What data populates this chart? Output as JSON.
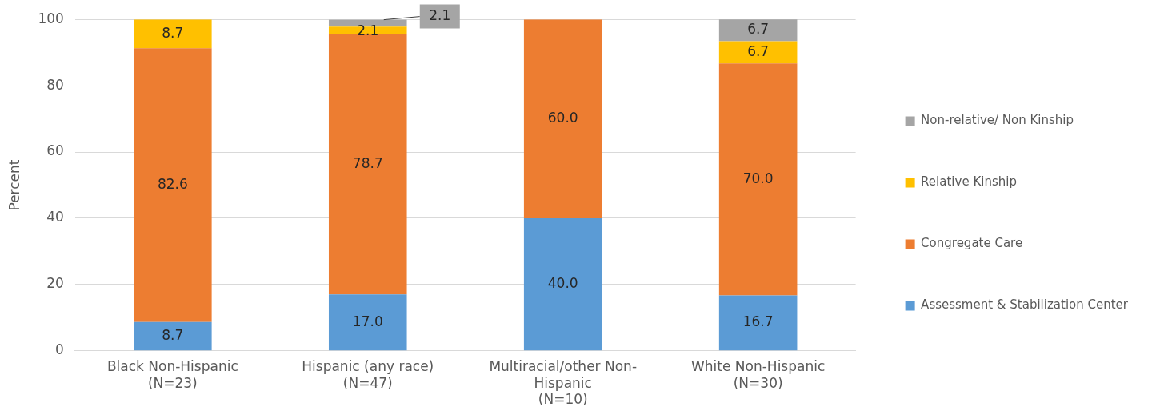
{
  "chart_data": {
    "type": "bar",
    "stacked": true,
    "ylabel": "Percent",
    "categories": [
      "Black Non-Hispanic\n(N=23)",
      "Hispanic (any race)\n(N=47)",
      "Multiracial/other Non-\nHispanic\n(N=10)",
      "White Non-Hispanic\n(N=30)"
    ],
    "series": [
      {
        "name": "Assessment & Stabilization Center",
        "color": "#5b9bd5",
        "values": [
          8.7,
          17.0,
          40.0,
          16.7
        ],
        "value_labels": [
          "8.7",
          "17.0",
          "40.0",
          "16.7"
        ]
      },
      {
        "name": "Congregate Care",
        "color": "#ed7d31",
        "values": [
          82.6,
          78.7,
          60.0,
          70.0
        ],
        "value_labels": [
          "82.6",
          "78.7",
          "60.0",
          "70.0"
        ]
      },
      {
        "name": "Relative Kinship",
        "color": "#ffc000",
        "values": [
          8.7,
          2.1,
          null,
          6.7
        ],
        "value_labels": [
          "8.7",
          "2.1",
          null,
          "6.7"
        ]
      },
      {
        "name": "Non-relative/ Non Kinship",
        "color": "#a5a5a5",
        "values": [
          null,
          2.1,
          null,
          6.7
        ],
        "value_labels": [
          null,
          "2.1",
          null,
          "6.7"
        ]
      }
    ],
    "ylim": [
      0,
      100
    ],
    "yticks": [
      0,
      20,
      40,
      60,
      80,
      100
    ],
    "grid": "y",
    "legend": "right"
  }
}
